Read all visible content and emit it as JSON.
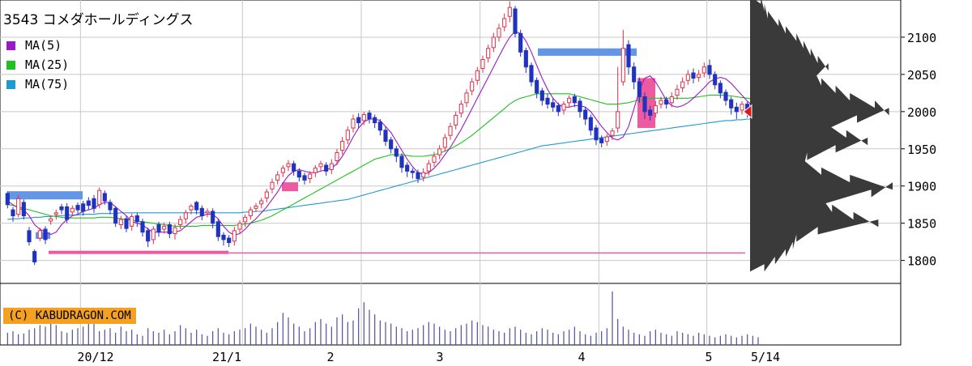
{
  "title": "3543 コメダホールディングス",
  "legend": [
    {
      "label": "MA(5)",
      "color": "#9b19c8"
    },
    {
      "label": "MA(25)",
      "color": "#20c020"
    },
    {
      "label": "MA(75)",
      "color": "#209bd0"
    }
  ],
  "credit": "(C) KABUDRAGON.COM",
  "colors": {
    "up": "#e0304a",
    "down": "#2032c0",
    "grid": "#c8c8c8",
    "gap_up": "#ee5aa0",
    "gap_down": "#6496e6",
    "volume": "#505096",
    "profile": "#3a3a3a",
    "marker": "#e01818"
  },
  "chart_data": {
    "type": "candlestick",
    "y_ticks": [
      1800,
      1850,
      1900,
      1950,
      2000,
      2050,
      2100
    ],
    "ylim": [
      1780,
      2150
    ],
    "x_tick_labels": [
      "20/12",
      "21/1",
      "2",
      "3",
      "4",
      "5",
      "5/14"
    ],
    "last_price": 2000,
    "price_line": 1810,
    "candles": [
      [
        1890,
        1875,
        1870,
        1893
      ],
      [
        1868,
        1860,
        1852,
        1872
      ],
      [
        1862,
        1883,
        1858,
        1888
      ],
      [
        1878,
        1860,
        1855,
        1882
      ],
      [
        1840,
        1825,
        1820,
        1845
      ],
      [
        1812,
        1798,
        1794,
        1815
      ],
      [
        1830,
        1840,
        1826,
        1844
      ],
      [
        1842,
        1828,
        1822,
        1846
      ],
      [
        1853,
        1856,
        1848,
        1860
      ],
      [
        1862,
        1864,
        1855,
        1868
      ],
      [
        1872,
        1868,
        1862,
        1876
      ],
      [
        1872,
        1855,
        1850,
        1877
      ],
      [
        1865,
        1870,
        1860,
        1874
      ],
      [
        1874,
        1868,
        1863,
        1878
      ],
      [
        1876,
        1866,
        1860,
        1880
      ],
      [
        1880,
        1874,
        1868,
        1885
      ],
      [
        1883,
        1870,
        1864,
        1888
      ],
      [
        1875,
        1894,
        1870,
        1898
      ],
      [
        1890,
        1880,
        1875,
        1894
      ],
      [
        1878,
        1868,
        1862,
        1882
      ],
      [
        1870,
        1850,
        1845,
        1873
      ],
      [
        1848,
        1855,
        1842,
        1860
      ],
      [
        1856,
        1843,
        1838,
        1860
      ],
      [
        1846,
        1859,
        1840,
        1863
      ],
      [
        1860,
        1852,
        1845,
        1864
      ],
      [
        1852,
        1838,
        1832,
        1856
      ],
      [
        1840,
        1826,
        1818,
        1844
      ],
      [
        1828,
        1842,
        1822,
        1846
      ],
      [
        1848,
        1838,
        1832,
        1852
      ],
      [
        1842,
        1846,
        1836,
        1851
      ],
      [
        1848,
        1836,
        1830,
        1852
      ],
      [
        1836,
        1844,
        1828,
        1849
      ],
      [
        1848,
        1855,
        1842,
        1860
      ],
      [
        1856,
        1864,
        1850,
        1868
      ],
      [
        1868,
        1873,
        1862,
        1876
      ],
      [
        1878,
        1868,
        1862,
        1880
      ],
      [
        1870,
        1860,
        1854,
        1874
      ],
      [
        1864,
        1866,
        1858,
        1870
      ],
      [
        1866,
        1850,
        1843,
        1870
      ],
      [
        1852,
        1832,
        1826,
        1856
      ],
      [
        1834,
        1828,
        1820,
        1838
      ],
      [
        1830,
        1824,
        1818,
        1834
      ],
      [
        1826,
        1840,
        1820,
        1845
      ],
      [
        1842,
        1850,
        1836,
        1854
      ],
      [
        1852,
        1858,
        1845,
        1862
      ],
      [
        1860,
        1868,
        1855,
        1872
      ],
      [
        1870,
        1873,
        1865,
        1877
      ],
      [
        1876,
        1880,
        1870,
        1884
      ],
      [
        1884,
        1892,
        1878,
        1896
      ],
      [
        1896,
        1905,
        1890,
        1910
      ],
      [
        1908,
        1915,
        1902,
        1920
      ],
      [
        1918,
        1924,
        1912,
        1928
      ],
      [
        1926,
        1930,
        1920,
        1935
      ],
      [
        1930,
        1920,
        1914,
        1934
      ],
      [
        1920,
        1912,
        1906,
        1924
      ],
      [
        1914,
        1908,
        1902,
        1918
      ],
      [
        1910,
        1916,
        1904,
        1920
      ],
      [
        1918,
        1924,
        1912,
        1928
      ],
      [
        1926,
        1930,
        1920,
        1934
      ],
      [
        1928,
        1920,
        1914,
        1932
      ],
      [
        1922,
        1930,
        1916,
        1936
      ],
      [
        1934,
        1945,
        1928,
        1950
      ],
      [
        1948,
        1960,
        1942,
        1966
      ],
      [
        1962,
        1975,
        1956,
        1980
      ],
      [
        1978,
        1990,
        1972,
        1996
      ],
      [
        1992,
        1985,
        1978,
        1998
      ],
      [
        1988,
        1996,
        1982,
        2000
      ],
      [
        1998,
        1990,
        1984,
        2002
      ],
      [
        1992,
        1985,
        1978,
        1996
      ],
      [
        1986,
        1975,
        1968,
        1990
      ],
      [
        1975,
        1960,
        1954,
        1980
      ],
      [
        1962,
        1950,
        1944,
        1966
      ],
      [
        1950,
        1940,
        1932,
        1954
      ],
      [
        1940,
        1925,
        1918,
        1944
      ],
      [
        1928,
        1920,
        1912,
        1932
      ],
      [
        1920,
        1918,
        1910,
        1924
      ],
      [
        1918,
        1910,
        1904,
        1922
      ],
      [
        1912,
        1918,
        1906,
        1924
      ],
      [
        1920,
        1930,
        1914,
        1935
      ],
      [
        1932,
        1940,
        1926,
        1946
      ],
      [
        1942,
        1950,
        1936,
        1955
      ],
      [
        1952,
        1965,
        1946,
        1970
      ],
      [
        1968,
        1980,
        1962,
        1985
      ],
      [
        1982,
        1995,
        1976,
        2000
      ],
      [
        1998,
        2010,
        1992,
        2015
      ],
      [
        2012,
        2025,
        2006,
        2030
      ],
      [
        2028,
        2040,
        2022,
        2045
      ],
      [
        2042,
        2055,
        2036,
        2060
      ],
      [
        2058,
        2070,
        2052,
        2075
      ],
      [
        2072,
        2085,
        2066,
        2090
      ],
      [
        2086,
        2100,
        2080,
        2106
      ],
      [
        2100,
        2112,
        2094,
        2118
      ],
      [
        2114,
        2125,
        2108,
        2132
      ],
      [
        2128,
        2140,
        2120,
        2148
      ],
      [
        2138,
        2105,
        2100,
        2142
      ],
      [
        2105,
        2080,
        2074,
        2110
      ],
      [
        2082,
        2060,
        2052,
        2086
      ],
      [
        2062,
        2040,
        2034,
        2066
      ],
      [
        2042,
        2025,
        2018,
        2046
      ],
      [
        2028,
        2015,
        2008,
        2032
      ],
      [
        2018,
        2010,
        2004,
        2024
      ],
      [
        2012,
        2006,
        2000,
        2018
      ],
      [
        2008,
        2000,
        1994,
        2012
      ],
      [
        2002,
        2010,
        1996,
        2014
      ],
      [
        2012,
        2018,
        2006,
        2022
      ],
      [
        2020,
        2012,
        2006,
        2024
      ],
      [
        2014,
        2000,
        1992,
        2018
      ],
      [
        2002,
        1990,
        1982,
        2006
      ],
      [
        1992,
        1975,
        1968,
        1996
      ],
      [
        1978,
        1962,
        1955,
        1982
      ],
      [
        1964,
        1958,
        1952,
        1968
      ],
      [
        1960,
        1966,
        1954,
        1970
      ],
      [
        1968,
        1974,
        1962,
        1978
      ],
      [
        1978,
        2000,
        1972,
        2060
      ],
      [
        2040,
        2085,
        2035,
        2110
      ],
      [
        2090,
        2060,
        2050,
        2096
      ],
      [
        2060,
        2040,
        2030,
        2066
      ],
      [
        2040,
        2020,
        2012,
        2046
      ],
      [
        2020,
        2000,
        1990,
        2026
      ],
      [
        2002,
        1995,
        1988,
        2008
      ],
      [
        1998,
        2008,
        1992,
        2014
      ],
      [
        2010,
        2015,
        2004,
        2020
      ],
      [
        2016,
        2010,
        2004,
        2020
      ],
      [
        2012,
        2020,
        2006,
        2026
      ],
      [
        2022,
        2030,
        2016,
        2036
      ],
      [
        2032,
        2040,
        2026,
        2046
      ],
      [
        2042,
        2050,
        2036,
        2056
      ],
      [
        2052,
        2045,
        2038,
        2058
      ],
      [
        2046,
        2050,
        2040,
        2056
      ],
      [
        2052,
        2060,
        2046,
        2066
      ],
      [
        2062,
        2050,
        2044,
        2070
      ],
      [
        2050,
        2036,
        2030,
        2054
      ],
      [
        2038,
        2025,
        2018,
        2042
      ],
      [
        2026,
        2015,
        2008,
        2030
      ],
      [
        2016,
        2005,
        1996,
        2020
      ],
      [
        2006,
        2000,
        1990,
        2012
      ],
      [
        2002,
        2010,
        1996,
        2014
      ],
      [
        2010,
        2000,
        1992,
        2014
      ]
    ],
    "volume": [
      16,
      18,
      14,
      15,
      20,
      22,
      26,
      24,
      28,
      26,
      18,
      16,
      20,
      22,
      24,
      30,
      28,
      18,
      20,
      22,
      16,
      24,
      18,
      20,
      14,
      12,
      22,
      18,
      16,
      20,
      14,
      18,
      26,
      22,
      16,
      20,
      14,
      12,
      18,
      22,
      16,
      14,
      18,
      20,
      22,
      28,
      24,
      20,
      16,
      22,
      30,
      42,
      36,
      28,
      24,
      18,
      22,
      30,
      34,
      28,
      24,
      36,
      40,
      30,
      32,
      48,
      56,
      46,
      40,
      32,
      30,
      28,
      24,
      22,
      18,
      20,
      22,
      26,
      30,
      28,
      24,
      20,
      18,
      22,
      26,
      28,
      32,
      30,
      26,
      24,
      20,
      18,
      16,
      22,
      24,
      20,
      16,
      14,
      18,
      22,
      20,
      16,
      14,
      18,
      20,
      24,
      18,
      14,
      12,
      16,
      18,
      22,
      70,
      34,
      24,
      20,
      16,
      14,
      12,
      18,
      20,
      16,
      14,
      12,
      18,
      16,
      14,
      12,
      16,
      14,
      12,
      10,
      12,
      14,
      12,
      10,
      12,
      14,
      12,
      10
    ],
    "ma5": [
      1880,
      1875,
      1870,
      1868,
      1860,
      1848,
      1842,
      1838,
      1835,
      1838,
      1848,
      1855,
      1860,
      1862,
      1866,
      1868,
      1870,
      1875,
      1878,
      1878,
      1872,
      1866,
      1860,
      1852,
      1850,
      1848,
      1842,
      1838,
      1838,
      1838,
      1838,
      1838,
      1840,
      1846,
      1852,
      1858,
      1860,
      1862,
      1862,
      1856,
      1846,
      1838,
      1834,
      1836,
      1842,
      1850,
      1856,
      1864,
      1872,
      1882,
      1892,
      1904,
      1914,
      1920,
      1922,
      1920,
      1918,
      1918,
      1920,
      1922,
      1924,
      1930,
      1940,
      1952,
      1966,
      1978,
      1986,
      1990,
      1990,
      1988,
      1980,
      1972,
      1960,
      1948,
      1936,
      1926,
      1918,
      1916,
      1918,
      1924,
      1932,
      1942,
      1952,
      1964,
      1976,
      1990,
      2004,
      2018,
      2032,
      2046,
      2060,
      2074,
      2088,
      2100,
      2108,
      2105,
      2095,
      2080,
      2062,
      2045,
      2030,
      2018,
      2010,
      2006,
      2006,
      2008,
      2008,
      2006,
      2000,
      1990,
      1980,
      1972,
      1964,
      1962,
      1966,
      1980,
      2004,
      2028,
      2045,
      2048,
      2040,
      2028,
      2015,
      2008,
      2006,
      2008,
      2012,
      2018,
      2025,
      2032,
      2040,
      2044,
      2046,
      2044,
      2038,
      2030,
      2022,
      2014,
      2008,
      2005,
      2004
    ],
    "ma25": [
      1875,
      1874,
      1872,
      1870,
      1868,
      1866,
      1864,
      1862,
      1860,
      1859,
      1858,
      1857,
      1857,
      1857,
      1857,
      1857,
      1857,
      1858,
      1858,
      1858,
      1857,
      1856,
      1855,
      1854,
      1853,
      1852,
      1851,
      1850,
      1849,
      1848,
      1847,
      1846,
      1846,
      1846,
      1846,
      1846,
      1847,
      1847,
      1847,
      1847,
      1847,
      1847,
      1847,
      1848,
      1849,
      1850,
      1852,
      1854,
      1857,
      1860,
      1864,
      1868,
      1872,
      1876,
      1880,
      1884,
      1888,
      1892,
      1896,
      1900,
      1904,
      1908,
      1912,
      1916,
      1920,
      1924,
      1928,
      1932,
      1936,
      1938,
      1940,
      1942,
      1942,
      1942,
      1941,
      1940,
      1940,
      1940,
      1941,
      1942,
      1944,
      1947,
      1950,
      1954,
      1958,
      1963,
      1968,
      1974,
      1980,
      1986,
      1992,
      1998,
      2004,
      2010,
      2015,
      2018,
      2020,
      2022,
      2024,
      2024,
      2024,
      2024,
      2024,
      2024,
      2024,
      2022,
      2020,
      2018,
      2016,
      2014,
      2012,
      2010,
      2010,
      2010,
      2011,
      2012,
      2014,
      2016,
      2017,
      2018,
      2018,
      2018,
      2018,
      2018,
      2018,
      2018,
      2018,
      2019,
      2020,
      2021,
      2022,
      2022,
      2022,
      2022,
      2021,
      2020,
      2019,
      2018,
      2017,
      2016,
      2015
    ],
    "ma75": [
      1855,
      1856,
      1856,
      1857,
      1857,
      1858,
      1858,
      1859,
      1859,
      1860,
      1860,
      1861,
      1861,
      1861,
      1862,
      1862,
      1862,
      1863,
      1863,
      1863,
      1863,
      1864,
      1864,
      1864,
      1864,
      1864,
      1864,
      1864,
      1864,
      1864,
      1864,
      1864,
      1864,
      1864,
      1864,
      1864,
      1864,
      1864,
      1864,
      1864,
      1864,
      1864,
      1864,
      1864,
      1865,
      1865,
      1866,
      1866,
      1867,
      1868,
      1869,
      1870,
      1871,
      1872,
      1873,
      1874,
      1875,
      1876,
      1877,
      1878,
      1879,
      1880,
      1881,
      1882,
      1884,
      1886,
      1888,
      1890,
      1892,
      1894,
      1896,
      1898,
      1900,
      1902,
      1904,
      1906,
      1908,
      1910,
      1912,
      1914,
      1916,
      1918,
      1920,
      1922,
      1924,
      1926,
      1928,
      1930,
      1932,
      1934,
      1936,
      1938,
      1940,
      1942,
      1944,
      1946,
      1948,
      1950,
      1952,
      1954,
      1955,
      1956,
      1957,
      1958,
      1959,
      1960,
      1961,
      1962,
      1963,
      1964,
      1965,
      1966,
      1967,
      1968,
      1969,
      1970,
      1971,
      1972,
      1973,
      1974,
      1975,
      1976,
      1977,
      1978,
      1979,
      1980,
      1981,
      1982,
      1983,
      1984,
      1985,
      1986,
      1987,
      1988,
      1988,
      1989,
      1989,
      1990,
      1990,
      1991
    ],
    "volume_profile": [
      [
        1790,
        8
      ],
      [
        1800,
        14
      ],
      [
        1810,
        20
      ],
      [
        1820,
        24
      ],
      [
        1830,
        26
      ],
      [
        1840,
        38
      ],
      [
        1850,
        72
      ],
      [
        1860,
        58
      ],
      [
        1870,
        46
      ],
      [
        1880,
        40
      ],
      [
        1890,
        68
      ],
      [
        1900,
        80
      ],
      [
        1910,
        56
      ],
      [
        1920,
        40
      ],
      [
        1930,
        30
      ],
      [
        1940,
        32
      ],
      [
        1950,
        48
      ],
      [
        1960,
        66
      ],
      [
        1970,
        54
      ],
      [
        1980,
        42
      ],
      [
        1990,
        60
      ],
      [
        2000,
        78
      ],
      [
        2010,
        70
      ],
      [
        2020,
        56
      ],
      [
        2030,
        48
      ],
      [
        2040,
        40
      ],
      [
        2050,
        36
      ],
      [
        2060,
        44
      ],
      [
        2070,
        38
      ],
      [
        2080,
        34
      ],
      [
        2090,
        30
      ],
      [
        2100,
        26
      ],
      [
        2110,
        20
      ],
      [
        2120,
        16
      ],
      [
        2130,
        10
      ],
      [
        2140,
        8
      ],
      [
        2150,
        6
      ]
    ]
  }
}
